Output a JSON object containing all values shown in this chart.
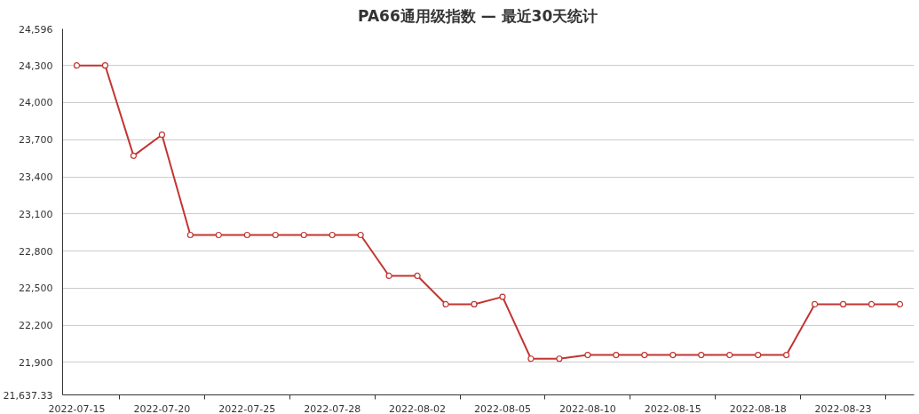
{
  "chart_data": {
    "type": "line",
    "title": "PA66通用级指数   —   最近30天统计",
    "categories": [
      "2022-07-15",
      null,
      null,
      "2022-07-20",
      null,
      null,
      "2022-07-25",
      null,
      null,
      "2022-07-28",
      null,
      null,
      "2022-08-02",
      null,
      null,
      "2022-08-05",
      null,
      null,
      "2022-08-10",
      null,
      null,
      "2022-08-15",
      null,
      null,
      "2022-08-18",
      null,
      null,
      "2022-08-23",
      null,
      null
    ],
    "series": [
      {
        "color": "#c23531",
        "values": [
          24300,
          24300,
          23570,
          23740,
          22930,
          22930,
          22930,
          22930,
          22930,
          22930,
          22930,
          22600,
          22600,
          22370,
          22370,
          22430,
          21930,
          21930,
          21960,
          21960,
          21960,
          21960,
          21960,
          21960,
          21960,
          21960,
          22370,
          22370,
          22370,
          22370
        ]
      }
    ],
    "ylim": [
      21637.33,
      24596
    ],
    "yticks": [
      {
        "value": 21637.33,
        "label": "21,637.33"
      },
      {
        "value": 21900,
        "label": "21,900"
      },
      {
        "value": 22200,
        "label": "22,200"
      },
      {
        "value": 22500,
        "label": "22,500"
      },
      {
        "value": 22800,
        "label": "22,800"
      },
      {
        "value": 23100,
        "label": "23,100"
      },
      {
        "value": 23400,
        "label": "23,400"
      },
      {
        "value": 23700,
        "label": "23,700"
      },
      {
        "value": 24000,
        "label": "24,000"
      },
      {
        "value": 24300,
        "label": "24,300"
      },
      {
        "value": 24596,
        "label": "24,596"
      }
    ],
    "grid": "y",
    "marker": "circle",
    "line_style": "solid"
  }
}
